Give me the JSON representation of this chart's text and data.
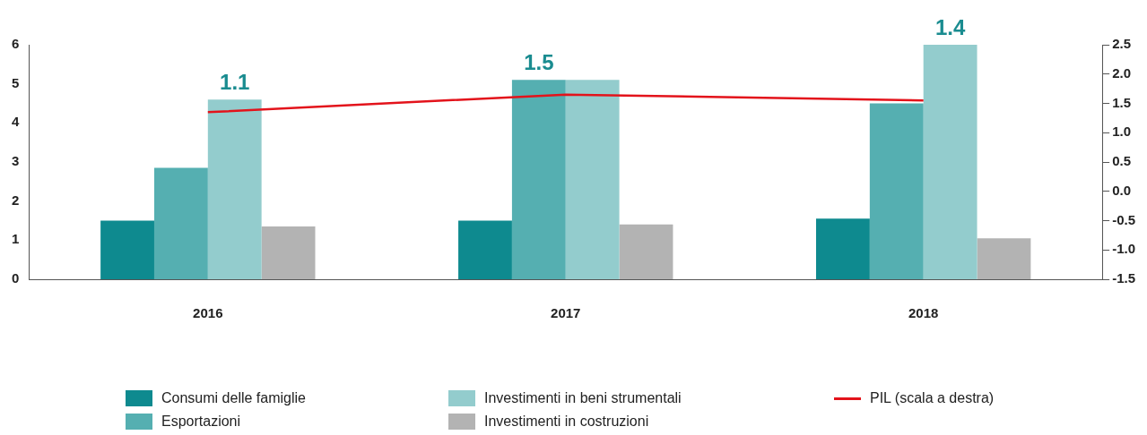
{
  "chart_data": {
    "type": "bar",
    "categories": [
      "2016",
      "2017",
      "2018"
    ],
    "series": [
      {
        "name": "Consumi delle famiglie",
        "color": "#0e8a8f",
        "values": [
          1.5,
          1.5,
          1.55
        ]
      },
      {
        "name": "Esportazioni",
        "color": "#55afb1",
        "values": [
          2.85,
          5.1,
          4.5
        ]
      },
      {
        "name": "Investimenti in beni strumentali",
        "color": "#93cccd",
        "values": [
          4.6,
          5.1,
          6.0
        ]
      },
      {
        "name": "Investimenti in costruzioni",
        "color": "#b3b3b3",
        "values": [
          1.35,
          1.4,
          1.05
        ]
      },
      {
        "name": "PIL (scala a destra)",
        "type": "line",
        "axis": "y2",
        "color": "#e3131b",
        "values": [
          1.35,
          1.65,
          1.55
        ]
      }
    ],
    "ylim": [
      0,
      6
    ],
    "yticks": [
      0,
      1,
      2,
      3,
      4,
      5,
      6
    ],
    "y2lim": [
      -1.5,
      2.5
    ],
    "y2ticks": [
      {
        "value": -1.5,
        "label": "-1.5"
      },
      {
        "value": -1,
        "label": "-1.0"
      },
      {
        "value": -0.5,
        "label": "-0.5"
      },
      {
        "value": 0,
        "label": "0.0"
      },
      {
        "value": 0.5,
        "label": "0.5"
      },
      {
        "value": 1,
        "label": "1.0"
      },
      {
        "value": 1.5,
        "label": "1.5"
      },
      {
        "value": 2,
        "label": "2.0"
      },
      {
        "value": 2.5,
        "label": "2.5"
      }
    ],
    "annotations": [
      "1.1",
      "1.5",
      "1.4"
    ],
    "grid": false,
    "legend": "bottom",
    "marker": "none",
    "line_style": "solid"
  }
}
